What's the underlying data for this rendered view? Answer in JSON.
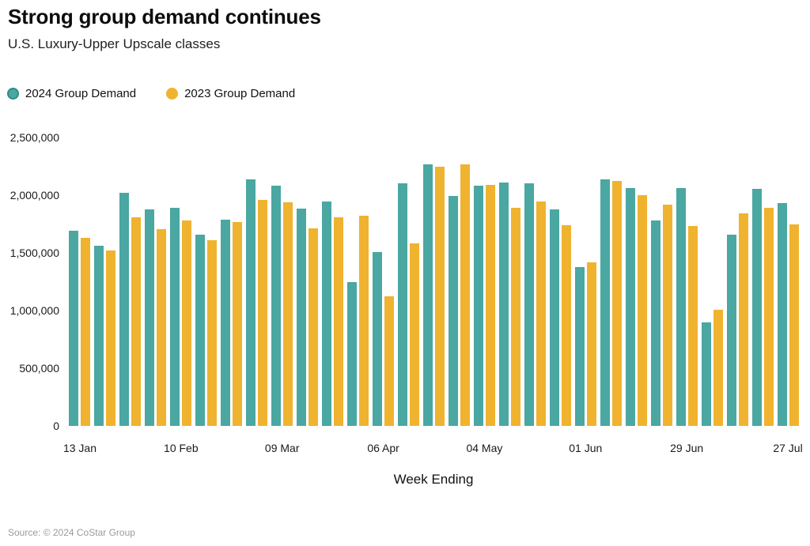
{
  "header": {
    "title": "Strong group demand continues",
    "subtitle": "U.S. Luxury-Upper Upscale classes"
  },
  "legend": {
    "items": [
      {
        "label": "2024 Group Demand",
        "color": "#4AA7A2",
        "ring": "#2F8D88"
      },
      {
        "label": "2023 Group Demand",
        "color": "#F0B32F",
        "ring": "#DT9F14"
      }
    ]
  },
  "chart_data": {
    "type": "bar",
    "title": "Strong group demand continues",
    "subtitle": "U.S. Luxury-Upper Upscale classes",
    "xlabel": "Week Ending",
    "ylabel": "",
    "ylim": [
      0,
      2500000
    ],
    "grid": false,
    "legend_position": "top-left",
    "y_ticks": [
      {
        "value": 0,
        "label": "0"
      },
      {
        "value": 500000,
        "label": "500,000"
      },
      {
        "value": 1000000,
        "label": "1,000,000"
      },
      {
        "value": 1500000,
        "label": "1,500,000"
      },
      {
        "value": 2000000,
        "label": "2,000,000"
      },
      {
        "value": 2500000,
        "label": "2,500,000"
      }
    ],
    "categories": [
      "13 Jan",
      "20 Jan",
      "27 Jan",
      "03 Feb",
      "10 Feb",
      "17 Feb",
      "24 Feb",
      "02 Mar",
      "09 Mar",
      "16 Mar",
      "23 Mar",
      "30 Mar",
      "06 Apr",
      "13 Apr",
      "20 Apr",
      "27 Apr",
      "04 May",
      "11 May",
      "18 May",
      "25 May",
      "01 Jun",
      "08 Jun",
      "15 Jun",
      "22 Jun",
      "29 Jun",
      "06 Jul",
      "13 Jul",
      "20 Jul",
      "27 Jul"
    ],
    "x_tick_indices": [
      0,
      4,
      8,
      12,
      16,
      20,
      24,
      28
    ],
    "x_tick_labels": [
      "13 Jan",
      "10 Feb",
      "09 Mar",
      "06 Apr",
      "04 May",
      "01 Jun",
      "29 Jun",
      "27 Jul"
    ],
    "series": [
      {
        "name": "2024 Group Demand",
        "color": "#4AA7A2",
        "values": [
          1690000,
          1565000,
          2020000,
          1875000,
          1890000,
          1655000,
          1790000,
          2135000,
          2080000,
          1885000,
          1945000,
          1250000,
          1510000,
          2105000,
          2265000,
          1995000,
          2085000,
          2110000,
          2105000,
          1875000,
          1380000,
          2140000,
          2065000,
          1780000,
          2065000,
          900000,
          1655000,
          2055000,
          1930000
        ]
      },
      {
        "name": "2023 Group Demand",
        "color": "#F0B32F",
        "values": [
          1630000,
          1520000,
          1810000,
          1705000,
          1780000,
          1610000,
          1765000,
          1960000,
          1940000,
          1715000,
          1810000,
          1820000,
          1120000,
          1585000,
          2250000,
          2265000,
          2090000,
          1890000,
          1945000,
          1740000,
          1420000,
          2120000,
          2000000,
          1920000,
          1730000,
          1005000,
          1845000,
          1890000,
          1750000
        ]
      }
    ]
  },
  "footer": {
    "source": "Source: © 2024 CoStar Group"
  }
}
